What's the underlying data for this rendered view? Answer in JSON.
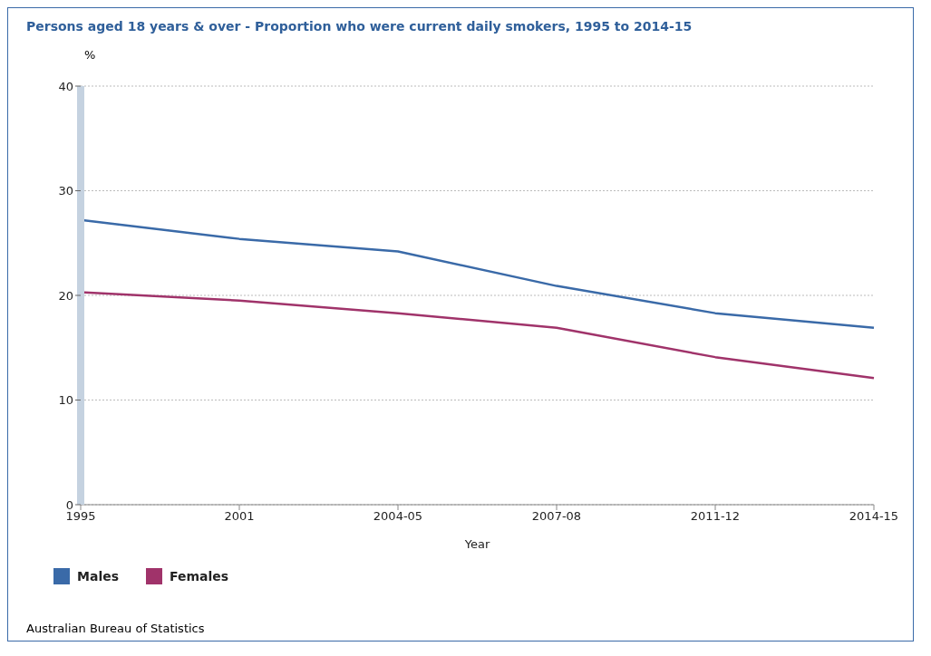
{
  "chart_data": {
    "type": "line",
    "title": "Persons aged 18 years & over - Proportion who were current daily smokers, 1995 to 2014-15",
    "ylabel": "%",
    "xlabel": "Year",
    "categories": [
      "1995",
      "2001",
      "2004-05",
      "2007-08",
      "2011-12",
      "2014-15"
    ],
    "series": [
      {
        "name": "Males",
        "color": "#3a6aa8",
        "values": [
          27.2,
          25.4,
          24.2,
          20.9,
          18.3,
          16.9
        ]
      },
      {
        "name": "Females",
        "color": "#a0336a",
        "values": [
          20.3,
          19.5,
          18.3,
          16.9,
          14.1,
          12.1
        ]
      }
    ],
    "ylim": [
      0,
      40
    ],
    "yticks": [
      0,
      10,
      20,
      30,
      40
    ],
    "grid": "y",
    "legend": "bottom left",
    "marker": "none",
    "line_style": "solid",
    "annotations": [
      "Australian Bureau of Statistics"
    ]
  }
}
